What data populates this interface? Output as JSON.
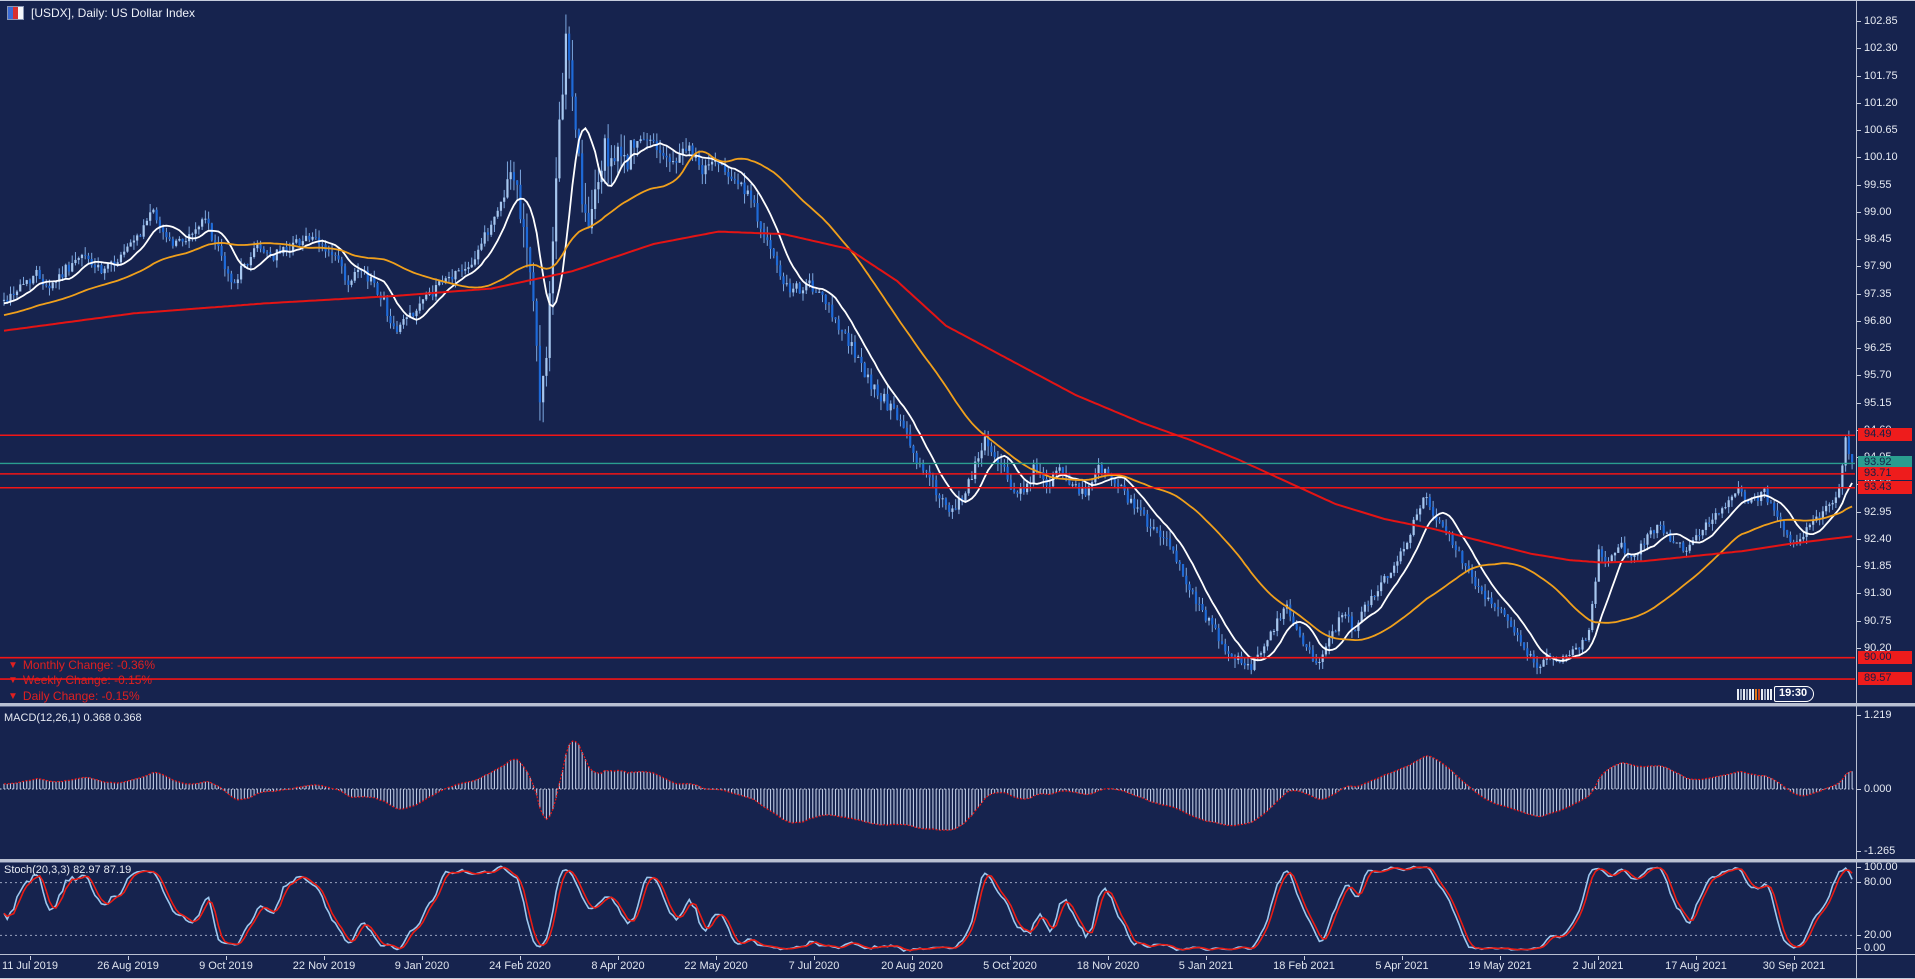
{
  "window": {
    "title": "[USDX], Daily:  US Dollar Index",
    "symbol": "USDX",
    "timeframe": "Daily"
  },
  "colors": {
    "background": "#16234e",
    "frame": "#b9c0d2",
    "axis_text": "#e6eaf2",
    "red_level_line": "#f21515",
    "current_price_line": "#2a9d8f",
    "candle_bull": "#a6c6ee",
    "candle_bear": "#1e6ad8",
    "wick": "#7da8e0",
    "ma_fast": "#ffffff",
    "ma_medium": "#f0a01c",
    "ma_slow": "#e41414",
    "macd_bar": "#bcc8e2",
    "macd_signal": "#e81414",
    "stoch_k": "#9cc7ee",
    "stoch_d": "#ea1c14",
    "change_text": "#e02020"
  },
  "overlays": {
    "changes": [
      {
        "label": "Monthly Change:  -0.36%"
      },
      {
        "label": "Weekly Change:  -0.15%"
      },
      {
        "label": "Daily Change:  -0.15%"
      }
    ]
  },
  "countdown": {
    "time_label": "19:30"
  },
  "indicators": {
    "macd": {
      "label": "MACD(12,26,1) 0.368 0.368",
      "axis_ticks": [
        "1.219",
        "0.000",
        "-1.265"
      ],
      "values": [
        0.368,
        0.368
      ]
    },
    "stoch": {
      "label": "Stoch(20,3,3) 82.97 87.19",
      "axis_ticks": [
        "100.00",
        "80.00",
        "20.00",
        "0.00"
      ],
      "levels": [
        80,
        20
      ],
      "values": [
        82.97,
        87.19
      ]
    }
  },
  "price_axis": {
    "ticks": [
      "102.85",
      "102.30",
      "101.75",
      "101.20",
      "100.65",
      "100.10",
      "99.55",
      "99.00",
      "98.45",
      "97.90",
      "97.35",
      "96.80",
      "96.25",
      "95.70",
      "95.15",
      "94.60",
      "94.05",
      "93.50",
      "92.95",
      "92.40",
      "91.85",
      "91.30",
      "90.75",
      "90.20"
    ],
    "badges": [
      {
        "label": "94.49",
        "price": 94.49,
        "color": "red"
      },
      {
        "label": "93.92",
        "price": 93.92,
        "color": "teal"
      },
      {
        "label": "93.71",
        "price": 93.71,
        "color": "red"
      },
      {
        "label": "93.43",
        "price": 93.43,
        "color": "red"
      },
      {
        "label": "90.00",
        "price": 90.0,
        "color": "red"
      },
      {
        "label": "89.57",
        "price": 89.57,
        "color": "red"
      }
    ]
  },
  "time_axis": {
    "labels": [
      "11 Jul 2019",
      "26 Aug 2019",
      "9 Oct 2019",
      "22 Nov 2019",
      "9 Jan 2020",
      "24 Feb 2020",
      "8 Apr 2020",
      "22 May 2020",
      "7 Jul 2020",
      "20 Aug 2020",
      "5 Oct 2020",
      "18 Nov 2020",
      "5 Jan 2021",
      "18 Feb 2021",
      "5 Apr 2021",
      "19 May 2021",
      "2 Jul 2021",
      "17 Aug 2021",
      "30 Sep 2021"
    ]
  },
  "chart_data": {
    "type": "candlestick",
    "title": "US Dollar Index, Daily",
    "symbol": "USDX",
    "bars_visible": 570,
    "first_date": "11 Jul 2019",
    "last_date": "30 Sep 2021",
    "visible_price_range": [
      89.1,
      103.1
    ],
    "current_price": 93.92,
    "grid": false,
    "horizontal_levels_red": [
      94.49,
      93.71,
      93.43,
      90.0,
      89.57
    ],
    "close_anchors": [
      [
        0,
        97.2
      ],
      [
        6,
        97.55
      ],
      [
        10,
        97.75
      ],
      [
        14,
        97.5
      ],
      [
        20,
        97.9
      ],
      [
        25,
        98.1
      ],
      [
        30,
        97.75
      ],
      [
        36,
        98.1
      ],
      [
        42,
        98.5
      ],
      [
        45,
        99.05
      ],
      [
        48,
        98.7
      ],
      [
        52,
        98.35
      ],
      [
        57,
        98.5
      ],
      [
        62,
        98.85
      ],
      [
        66,
        98.2
      ],
      [
        70,
        97.55
      ],
      [
        74,
        97.9
      ],
      [
        78,
        98.3
      ],
      [
        83,
        98.1
      ],
      [
        88,
        98.3
      ],
      [
        93,
        98.5
      ],
      [
        98,
        98.3
      ],
      [
        103,
        98.0
      ],
      [
        106,
        97.45
      ],
      [
        109,
        97.8
      ],
      [
        113,
        97.65
      ],
      [
        117,
        97.2
      ],
      [
        120,
        96.6
      ],
      [
        124,
        96.85
      ],
      [
        129,
        97.2
      ],
      [
        134,
        97.5
      ],
      [
        139,
        97.75
      ],
      [
        144,
        98.0
      ],
      [
        149,
        98.6
      ],
      [
        153,
        99.2
      ],
      [
        156,
        99.75
      ],
      [
        158,
        99.5
      ],
      [
        161,
        98.4
      ],
      [
        163,
        97.2
      ],
      [
        165,
        95.1
      ],
      [
        167,
        96.3
      ],
      [
        169,
        98.2
      ],
      [
        171,
        100.6
      ],
      [
        173,
        102.6
      ],
      [
        174,
        101.9
      ],
      [
        176,
        100.8
      ],
      [
        178,
        99.3
      ],
      [
        180,
        98.5
      ],
      [
        182,
        99.4
      ],
      [
        185,
        100.2
      ],
      [
        190,
        100.0
      ],
      [
        195,
        100.35
      ],
      [
        200,
        100.45
      ],
      [
        205,
        99.95
      ],
      [
        210,
        100.3
      ],
      [
        215,
        99.85
      ],
      [
        220,
        100.05
      ],
      [
        225,
        99.7
      ],
      [
        230,
        99.2
      ],
      [
        234,
        98.6
      ],
      [
        238,
        97.8
      ],
      [
        242,
        97.35
      ],
      [
        247,
        97.55
      ],
      [
        251,
        97.3
      ],
      [
        256,
        96.85
      ],
      [
        261,
        96.25
      ],
      [
        266,
        95.6
      ],
      [
        271,
        95.2
      ],
      [
        276,
        94.75
      ],
      [
        281,
        94.0
      ],
      [
        286,
        93.5
      ],
      [
        291,
        92.85
      ],
      [
        295,
        93.2
      ],
      [
        299,
        93.9
      ],
      [
        302,
        94.4
      ],
      [
        306,
        94.0
      ],
      [
        310,
        93.5
      ],
      [
        314,
        93.25
      ],
      [
        317,
        93.8
      ],
      [
        321,
        93.5
      ],
      [
        325,
        93.75
      ],
      [
        329,
        93.4
      ],
      [
        333,
        93.3
      ],
      [
        337,
        93.85
      ],
      [
        341,
        93.6
      ],
      [
        345,
        93.3
      ],
      [
        350,
        92.9
      ],
      [
        355,
        92.5
      ],
      [
        360,
        92.15
      ],
      [
        365,
        91.4
      ],
      [
        370,
        90.8
      ],
      [
        375,
        90.3
      ],
      [
        380,
        89.95
      ],
      [
        384,
        89.85
      ],
      [
        388,
        90.25
      ],
      [
        392,
        90.7
      ],
      [
        395,
        91.0
      ],
      [
        398,
        90.6
      ],
      [
        401,
        90.15
      ],
      [
        405,
        89.9
      ],
      [
        408,
        90.35
      ],
      [
        412,
        90.85
      ],
      [
        416,
        90.6
      ],
      [
        420,
        91.1
      ],
      [
        424,
        91.5
      ],
      [
        428,
        91.9
      ],
      [
        432,
        92.4
      ],
      [
        437,
        93.25
      ],
      [
        440,
        92.95
      ],
      [
        444,
        92.5
      ],
      [
        448,
        92.1
      ],
      [
        452,
        91.6
      ],
      [
        456,
        91.25
      ],
      [
        460,
        91.05
      ],
      [
        464,
        90.7
      ],
      [
        468,
        90.2
      ],
      [
        472,
        89.85
      ],
      [
        476,
        90.05
      ],
      [
        480,
        89.95
      ],
      [
        484,
        90.15
      ],
      [
        488,
        90.5
      ],
      [
        491,
        92.15
      ],
      [
        494,
        91.9
      ],
      [
        498,
        92.25
      ],
      [
        502,
        92.0
      ],
      [
        506,
        92.45
      ],
      [
        510,
        92.65
      ],
      [
        514,
        92.35
      ],
      [
        518,
        92.15
      ],
      [
        522,
        92.55
      ],
      [
        526,
        92.85
      ],
      [
        530,
        93.0
      ],
      [
        534,
        93.4
      ],
      [
        538,
        93.15
      ],
      [
        542,
        93.35
      ],
      [
        546,
        92.85
      ],
      [
        550,
        92.25
      ],
      [
        554,
        92.5
      ],
      [
        557,
        92.8
      ],
      [
        560,
        92.95
      ],
      [
        563,
        93.2
      ],
      [
        565,
        93.45
      ],
      [
        567,
        94.35
      ],
      [
        568,
        94.2
      ],
      [
        569,
        93.92
      ]
    ],
    "volatility_regions": [
      [
        0,
        154,
        1.0
      ],
      [
        155,
        195,
        2.6
      ],
      [
        196,
        240,
        1.3
      ],
      [
        241,
        330,
        1.15
      ],
      [
        331,
        420,
        1.0
      ],
      [
        421,
        465,
        0.9
      ],
      [
        466,
        530,
        0.8
      ],
      [
        531,
        569,
        0.9
      ]
    ],
    "moving_averages": [
      {
        "name": "fast",
        "color": "white",
        "approx_period": 10
      },
      {
        "name": "medium",
        "color": "orange",
        "approx_period": 45
      },
      {
        "name": "slow",
        "color": "red",
        "approx_period": 200,
        "path_anchors": [
          [
            0,
            96.6
          ],
          [
            40,
            96.95
          ],
          [
            80,
            97.15
          ],
          [
            120,
            97.3
          ],
          [
            150,
            97.45
          ],
          [
            175,
            97.8
          ],
          [
            200,
            98.35
          ],
          [
            220,
            98.6
          ],
          [
            240,
            98.55
          ],
          [
            260,
            98.25
          ],
          [
            275,
            97.6
          ],
          [
            290,
            96.7
          ],
          [
            310,
            96.0
          ],
          [
            330,
            95.3
          ],
          [
            350,
            94.75
          ],
          [
            365,
            94.4
          ],
          [
            380,
            94.0
          ],
          [
            395,
            93.55
          ],
          [
            410,
            93.1
          ],
          [
            425,
            92.8
          ],
          [
            440,
            92.6
          ],
          [
            455,
            92.35
          ],
          [
            470,
            92.1
          ],
          [
            482,
            91.97
          ],
          [
            492,
            91.92
          ],
          [
            505,
            91.95
          ],
          [
            520,
            92.05
          ],
          [
            535,
            92.15
          ],
          [
            550,
            92.3
          ],
          [
            560,
            92.38
          ],
          [
            569,
            92.45
          ]
        ]
      }
    ],
    "macd": {
      "fast": 12,
      "slow": 26,
      "signal": 1,
      "axis_max": 1.219,
      "axis_min": -1.265,
      "last_value": 0.368
    },
    "stochastic": {
      "k": 20,
      "d": 3,
      "slowing": 3,
      "overbought": 80,
      "oversold": 20,
      "last_k": 82.97,
      "last_d": 87.19
    }
  }
}
